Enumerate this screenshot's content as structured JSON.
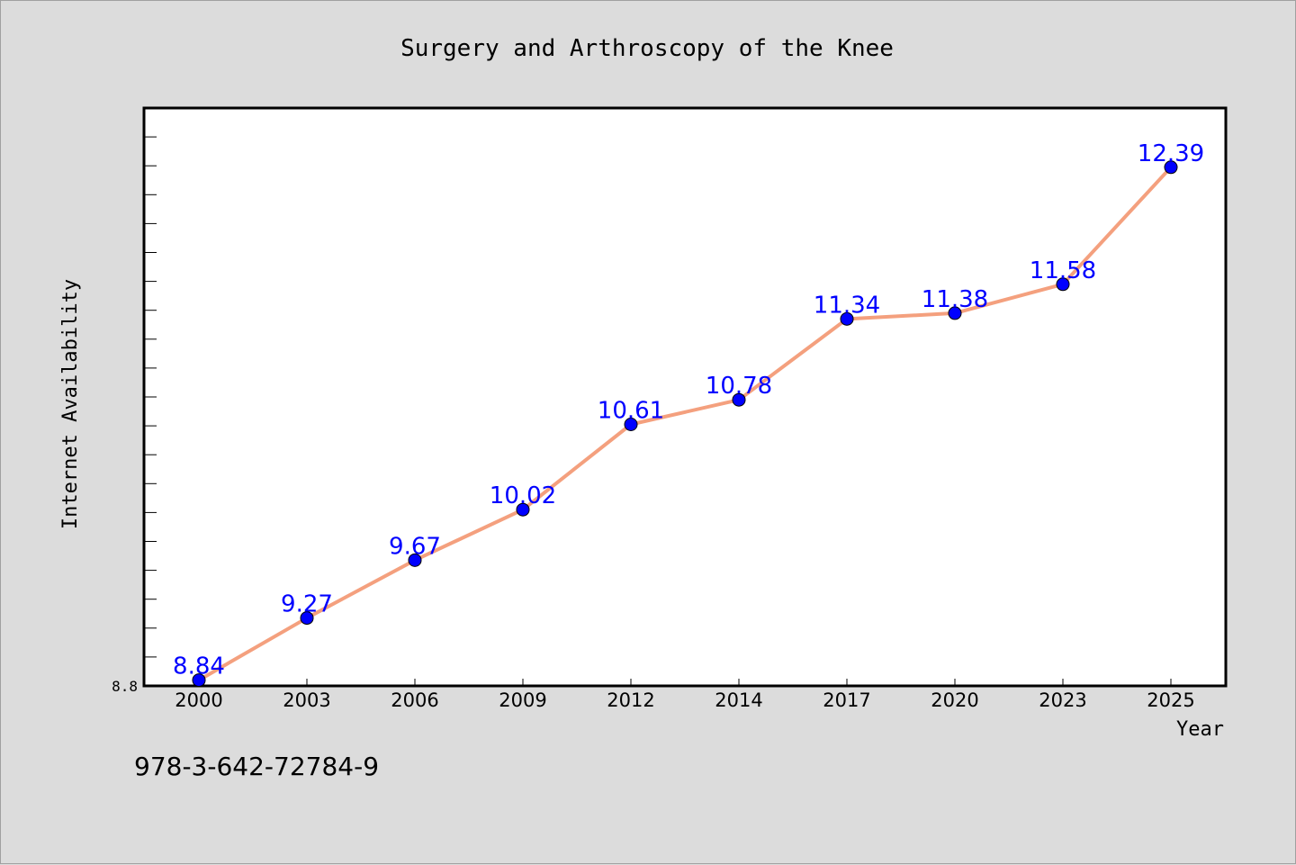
{
  "chart_data": {
    "type": "line",
    "title": "Surgery and Arthroscopy of the Knee",
    "xlabel": "Year",
    "ylabel": "Internet Availability",
    "categories": [
      "2000",
      "2003",
      "2006",
      "2009",
      "2012",
      "2014",
      "2017",
      "2020",
      "2023",
      "2025"
    ],
    "values": [
      8.84,
      9.27,
      9.67,
      10.02,
      10.61,
      10.78,
      11.34,
      11.38,
      11.58,
      12.39
    ],
    "ylim": [
      8.8,
      12.8
    ],
    "yticks_labeled": [
      "8.8"
    ],
    "data_labels": [
      "8.84",
      "9.27",
      "9.67",
      "10.02",
      "10.61",
      "10.78",
      "11.34",
      "11.38",
      "11.58",
      "12.39"
    ],
    "grid": false,
    "line_color": "#f4a07e",
    "marker_color": "#0000ff",
    "label_color": "#0000ff",
    "background_color": "#dcdcdc",
    "plot_background": "#ffffff"
  },
  "footer": {
    "isbn": "978-3-642-72784-9"
  }
}
